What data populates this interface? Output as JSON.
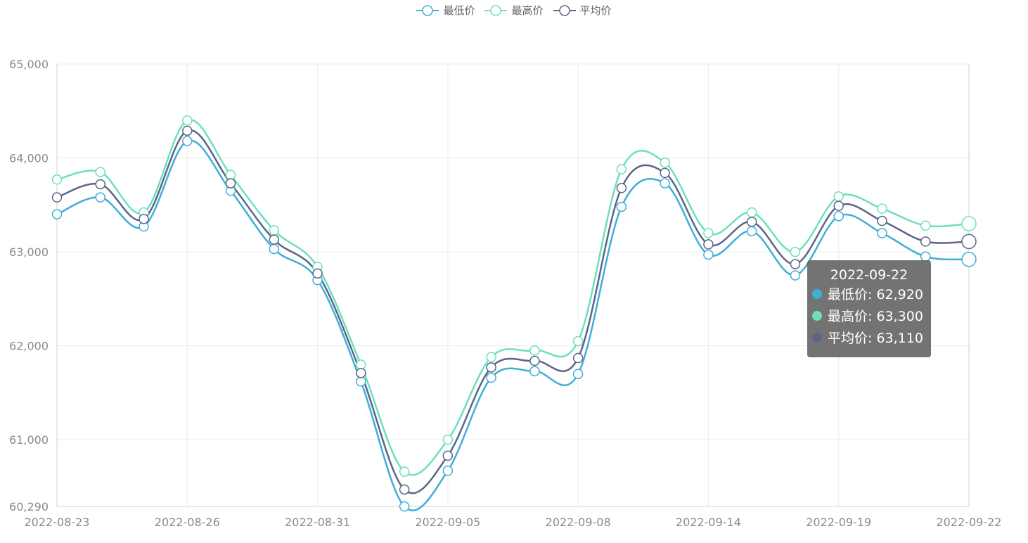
{
  "legend": [
    {
      "name": "最低价",
      "color": "#3faed8"
    },
    {
      "name": "最高价",
      "color": "#6ce0bb"
    },
    {
      "name": "平均价",
      "color": "#5b6587"
    }
  ],
  "tooltip": {
    "title": "2022-09-22",
    "rows": [
      {
        "label": "最低价: 62,920",
        "color": "#3faed8"
      },
      {
        "label": "最高价: 63,300",
        "color": "#6ce0bb"
      },
      {
        "label": "平均价: 63,110",
        "color": "#5b6587"
      }
    ]
  },
  "chart_data": {
    "type": "line",
    "title": "",
    "xlabel": "",
    "ylabel": "",
    "ylim": [
      60290,
      65000
    ],
    "yticks": [
      "60,290",
      "61,000",
      "62,000",
      "63,000",
      "64,000",
      "65,000"
    ],
    "ytick_values": [
      60290,
      61000,
      62000,
      63000,
      64000,
      65000
    ],
    "x": [
      "2022-08-23",
      "2022-08-24",
      "2022-08-25",
      "2022-08-26",
      "2022-08-29",
      "2022-08-30",
      "2022-08-31",
      "2022-09-01",
      "2022-09-02",
      "2022-09-05",
      "2022-09-06",
      "2022-09-07",
      "2022-09-08",
      "2022-09-09",
      "2022-09-13",
      "2022-09-14",
      "2022-09-15",
      "2022-09-16",
      "2022-09-19",
      "2022-09-20",
      "2022-09-21",
      "2022-09-22"
    ],
    "xtick_labels": [
      "2022-08-23",
      "2022-08-26",
      "2022-08-31",
      "2022-09-05",
      "2022-09-08",
      "2022-09-14",
      "2022-09-19",
      "2022-09-22"
    ],
    "xtick_indices": [
      0,
      3,
      6,
      9,
      12,
      15,
      18,
      21
    ],
    "series": [
      {
        "name": "最低价",
        "color": "#3faed8",
        "values": [
          63400,
          63580,
          63270,
          64180,
          63650,
          63030,
          62700,
          61620,
          60290,
          60670,
          61660,
          61730,
          61700,
          63480,
          63730,
          62970,
          63220,
          62750,
          63380,
          63200,
          62950,
          62920
        ]
      },
      {
        "name": "最高价",
        "color": "#6ce0bb",
        "values": [
          63770,
          63850,
          63420,
          64400,
          63820,
          63230,
          62840,
          61800,
          60660,
          61000,
          61880,
          61950,
          62050,
          63880,
          63950,
          63200,
          63420,
          63000,
          63590,
          63460,
          63280,
          63300
        ]
      },
      {
        "name": "平均价",
        "color": "#5b6587",
        "values": [
          63580,
          63720,
          63350,
          64290,
          63730,
          63130,
          62770,
          61710,
          60470,
          60830,
          61770,
          61840,
          61870,
          63680,
          63840,
          63080,
          63320,
          62870,
          63490,
          63330,
          63110,
          63110
        ]
      }
    ],
    "grid": true,
    "legend_position": "top-center"
  }
}
